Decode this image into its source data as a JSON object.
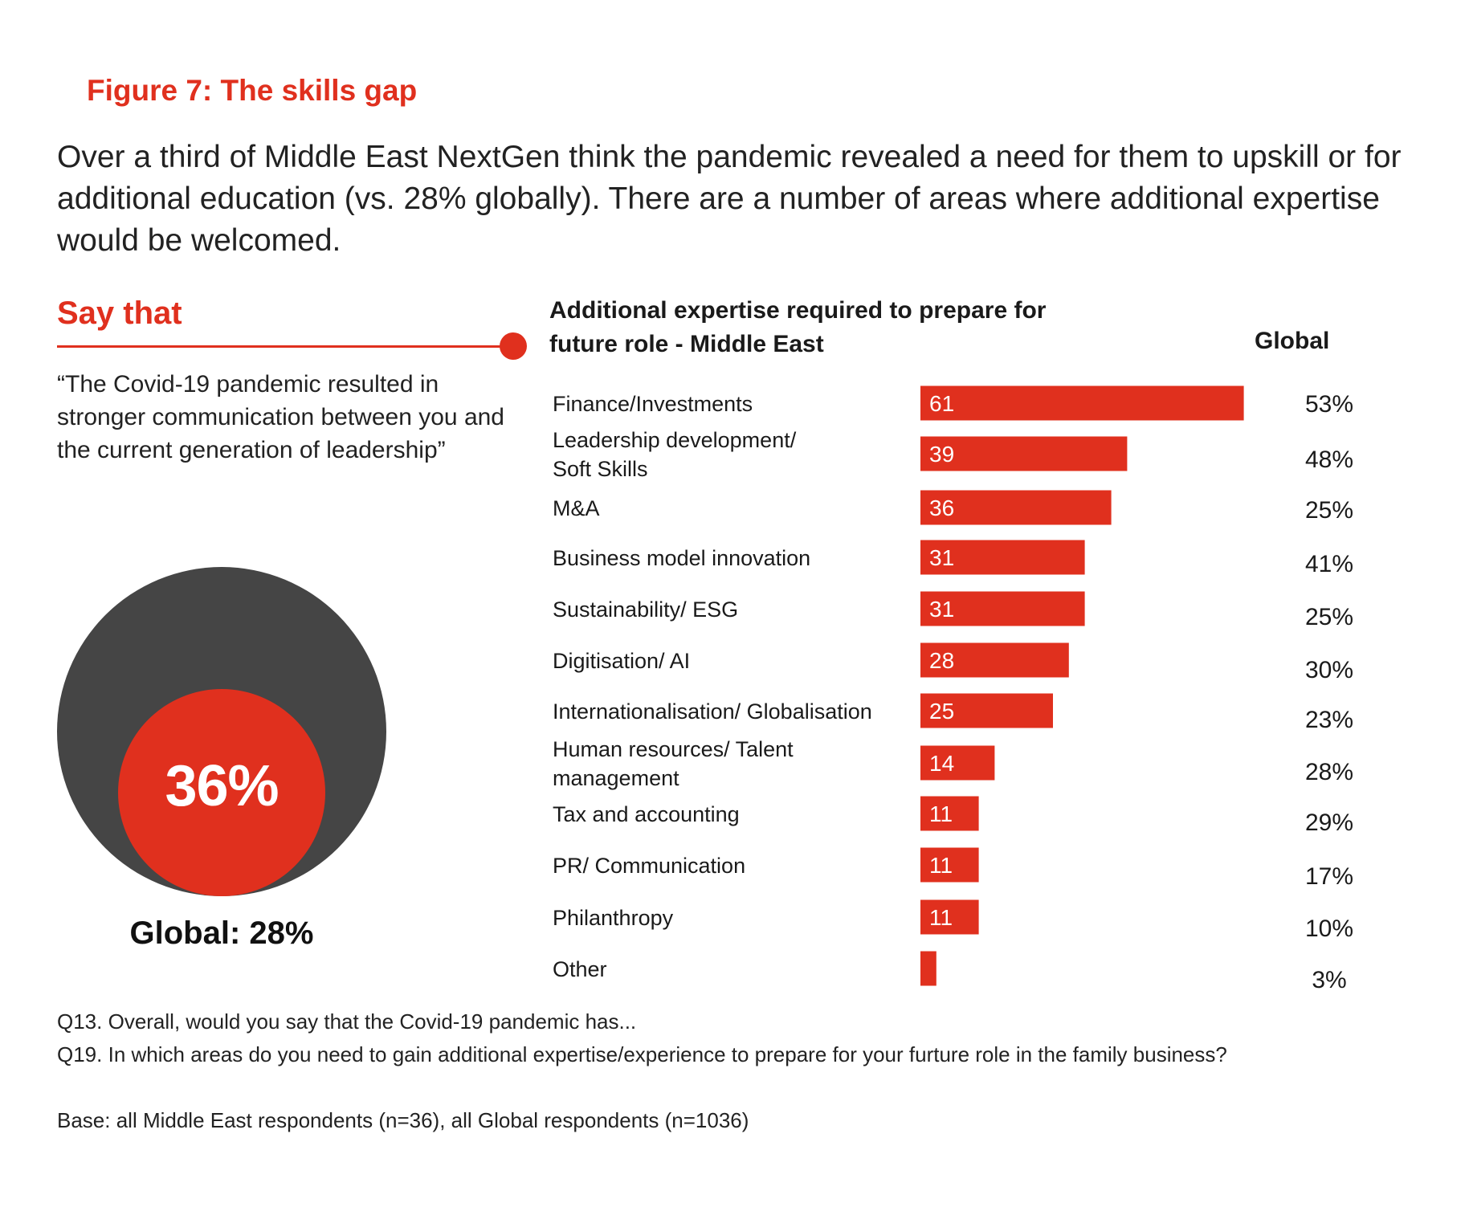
{
  "figure_title": "Figure 7: The skills gap",
  "intro_text": "Over a third of Middle East NextGen think the pandemic revealed a need for them to upskill or for additional education (vs. 28% globally). There are a number of areas where additional expertise would be welcomed.",
  "say_that": {
    "heading": "Say that",
    "quote": "“The Covid-19 pandemic resulted in stronger communication between you and the current generation of leadership”",
    "value_label": "36%",
    "value": 36,
    "global_label": "Global: 28%",
    "global_value": 28
  },
  "chart_data": {
    "type": "bar",
    "orientation": "horizontal",
    "title": "Additional expertise required to prepare for future role - Middle East",
    "global_column_header": "Global",
    "categories": [
      [
        "Finance/Investments"
      ],
      [
        "Leadership development/",
        "Soft Skills"
      ],
      [
        "M&A"
      ],
      [
        "Business model innovation"
      ],
      [
        "Sustainability/ ESG"
      ],
      [
        "Digitisation/ AI"
      ],
      [
        "Internationalisation/ Globalisation"
      ],
      [
        "Human resources/ Talent",
        "management"
      ],
      [
        "Tax and accounting"
      ],
      [
        "PR/ Communication"
      ],
      [
        "Philanthropy"
      ],
      [
        "Other"
      ]
    ],
    "values": [
      61,
      39,
      36,
      31,
      31,
      28,
      25,
      14,
      11,
      11,
      11,
      3
    ],
    "value_labels": [
      "61",
      "39",
      "36",
      "31",
      "31",
      "28",
      "25",
      "14",
      "11",
      "11",
      "11",
      ""
    ],
    "global_labels": [
      "53%",
      "48%",
      "25%",
      "41%",
      "25%",
      "30%",
      "23%",
      "28%",
      "29%",
      "17%",
      "10%",
      "3%"
    ],
    "bar_color": "#e0301e"
  },
  "footnotes": {
    "q13": "Q13. Overall, would you say that the Covid-19 pandemic has...",
    "q19": "Q19. In which areas do you need to gain additional expertise/experience to prepare for your furture role in the family business?",
    "base": "Base: all Middle East respondents (n=36), all Global respondents (n=1036)"
  },
  "colors": {
    "accent": "#e0301e",
    "dark_circle": "#454545"
  }
}
